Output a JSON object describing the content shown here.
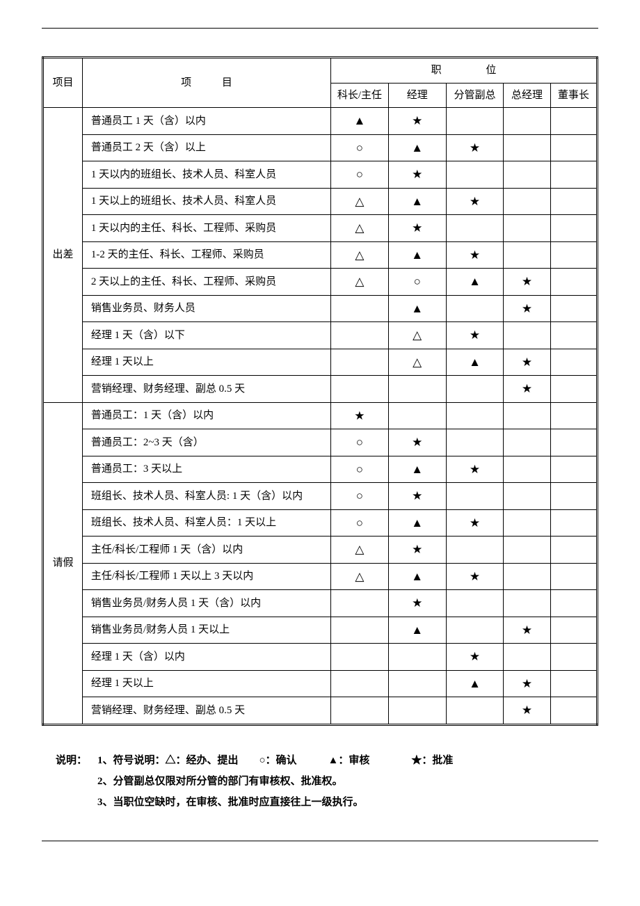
{
  "table": {
    "header": {
      "col1": "项目",
      "col2": "项 目",
      "positions_group": "职 位",
      "positions": [
        "科长/主任",
        "经理",
        "分管副总",
        "总经理",
        "董事长"
      ]
    },
    "sections": [
      {
        "category": "出差",
        "rows": [
          {
            "item": "普通员工 1 天（含）以内",
            "cells": [
              "▲",
              "★",
              "",
              "",
              ""
            ]
          },
          {
            "item": "普通员工 2 天（含）以上",
            "cells": [
              "○",
              "▲",
              "★",
              "",
              ""
            ]
          },
          {
            "item": "1 天以内的班组长、技术人员、科室人员",
            "cells": [
              "○",
              "★",
              "",
              "",
              ""
            ]
          },
          {
            "item": "1 天以上的班组长、技术人员、科室人员",
            "cells": [
              "△",
              "▲",
              "★",
              "",
              ""
            ]
          },
          {
            "item": "1 天以内的主任、科长、工程师、采购员",
            "cells": [
              "△",
              "★",
              "",
              "",
              ""
            ]
          },
          {
            "item": "1-2 天的主任、科长、工程师、采购员",
            "cells": [
              "△",
              "▲",
              "★",
              "",
              ""
            ]
          },
          {
            "item": "2 天以上的主任、科长、工程师、采购员",
            "cells": [
              "△",
              "○",
              "▲",
              "★",
              ""
            ]
          },
          {
            "item": "销售业务员、财务人员",
            "cells": [
              "",
              "▲",
              "",
              "★",
              ""
            ]
          },
          {
            "item": "经理 1 天（含）以下",
            "cells": [
              "",
              "△",
              "★",
              "",
              ""
            ]
          },
          {
            "item": "经理 1 天以上",
            "cells": [
              "",
              "△",
              "▲",
              "★",
              ""
            ]
          },
          {
            "item": "营销经理、财务经理、副总 0.5 天",
            "cells": [
              "",
              "",
              "",
              "★",
              ""
            ]
          }
        ]
      },
      {
        "category": "请假",
        "rows": [
          {
            "item": "普通员工：1 天（含）以内",
            "cells": [
              "★",
              "",
              "",
              "",
              ""
            ]
          },
          {
            "item": "普通员工：2~3 天（含）",
            "cells": [
              "○",
              "★",
              "",
              "",
              ""
            ]
          },
          {
            "item": "普通员工：3 天以上",
            "cells": [
              "○",
              "▲",
              "★",
              "",
              ""
            ]
          },
          {
            "item": "班组长、技术人员、科室人员: 1 天（含）以内",
            "cells": [
              "○",
              "★",
              "",
              "",
              ""
            ]
          },
          {
            "item": "班组长、技术人员、科室人员：1 天以上",
            "cells": [
              "○",
              "▲",
              "★",
              "",
              ""
            ]
          },
          {
            "item": "主任/科长/工程师 1 天（含）以内",
            "cells": [
              "△",
              "★",
              "",
              "",
              ""
            ]
          },
          {
            "item": "主任/科长/工程师 1 天以上 3 天以内",
            "cells": [
              "△",
              "▲",
              "★",
              "",
              ""
            ]
          },
          {
            "item": "销售业务员/财务人员 1 天（含）以内",
            "cells": [
              "",
              "★",
              "",
              "",
              ""
            ]
          },
          {
            "item": "销售业务员/财务人员 1 天以上",
            "cells": [
              "",
              "▲",
              "",
              "★",
              ""
            ]
          },
          {
            "item": "经理 1 天（含）以内",
            "cells": [
              "",
              "",
              "★",
              "",
              ""
            ]
          },
          {
            "item": "经理 1 天以上",
            "cells": [
              "",
              "",
              "▲",
              "★",
              ""
            ]
          },
          {
            "item": "营销经理、财务经理、副总 0.5 天",
            "cells": [
              "",
              "",
              "",
              "★",
              ""
            ]
          }
        ]
      }
    ]
  },
  "notes": {
    "label": "说明：",
    "lines": [
      "1、符号说明：△：经办、提出　　○：确认　　　▲：审核　　　　★：批准",
      "2、分管副总仅限对所分管的部门有审核权、批准权。",
      "3、当职位空缺时，在审核、批准时应直接往上一级执行。"
    ]
  },
  "style": {
    "text_color": "#000000",
    "background": "#ffffff",
    "font_family": "SimSun",
    "base_fontsize": 15,
    "symbol_fontsize": 17
  }
}
